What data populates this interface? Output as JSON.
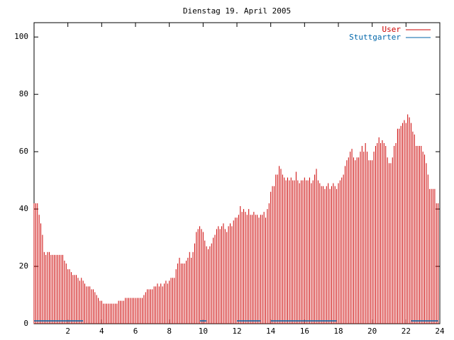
{
  "chart_data": {
    "type": "impulse",
    "title": "Dienstag 19. April 2005",
    "x": [
      0,
      0.1,
      0.2,
      0.3,
      0.4,
      0.5,
      0.6,
      0.7,
      0.8,
      0.9,
      1,
      1.1,
      1.2,
      1.3,
      1.4,
      1.5,
      1.6,
      1.7,
      1.8,
      1.9,
      2,
      2.1,
      2.2,
      2.3,
      2.4,
      2.5,
      2.6,
      2.7,
      2.8,
      2.9,
      3,
      3.1,
      3.2,
      3.3,
      3.4,
      3.5,
      3.6,
      3.7,
      3.8,
      3.9,
      4,
      4.1,
      4.2,
      4.3,
      4.4,
      4.5,
      4.6,
      4.7,
      4.8,
      4.9,
      5,
      5.1,
      5.2,
      5.3,
      5.4,
      5.5,
      5.6,
      5.7,
      5.8,
      5.9,
      6,
      6.1,
      6.2,
      6.3,
      6.4,
      6.5,
      6.6,
      6.7,
      6.8,
      6.9,
      7,
      7.1,
      7.2,
      7.3,
      7.4,
      7.5,
      7.6,
      7.7,
      7.8,
      7.9,
      8,
      8.1,
      8.2,
      8.3,
      8.4,
      8.5,
      8.6,
      8.7,
      8.8,
      8.9,
      9,
      9.1,
      9.2,
      9.3,
      9.4,
      9.5,
      9.6,
      9.7,
      9.8,
      9.9,
      10,
      10.1,
      10.2,
      10.3,
      10.4,
      10.5,
      10.6,
      10.7,
      10.8,
      10.9,
      11,
      11.1,
      11.2,
      11.3,
      11.4,
      11.5,
      11.6,
      11.7,
      11.8,
      11.9,
      12,
      12.1,
      12.2,
      12.3,
      12.4,
      12.5,
      12.6,
      12.7,
      12.8,
      12.9,
      13,
      13.1,
      13.2,
      13.3,
      13.4,
      13.5,
      13.6,
      13.7,
      13.8,
      13.9,
      14,
      14.1,
      14.2,
      14.3,
      14.4,
      14.5,
      14.6,
      14.7,
      14.8,
      14.9,
      15,
      15.1,
      15.2,
      15.3,
      15.4,
      15.5,
      15.6,
      15.7,
      15.8,
      15.9,
      16,
      16.1,
      16.2,
      16.3,
      16.4,
      16.5,
      16.6,
      16.7,
      16.8,
      16.9,
      17,
      17.1,
      17.2,
      17.3,
      17.4,
      17.5,
      17.6,
      17.7,
      17.8,
      17.9,
      18,
      18.1,
      18.2,
      18.3,
      18.4,
      18.5,
      18.6,
      18.7,
      18.8,
      18.9,
      19,
      19.1,
      19.2,
      19.3,
      19.4,
      19.5,
      19.6,
      19.7,
      19.8,
      19.9,
      20,
      20.1,
      20.2,
      20.3,
      20.4,
      20.5,
      20.6,
      20.7,
      20.8,
      20.9,
      21,
      21.1,
      21.2,
      21.3,
      21.4,
      21.5,
      21.6,
      21.7,
      21.8,
      21.9,
      22,
      22.1,
      22.2,
      22.3,
      22.4,
      22.5,
      22.6,
      22.7,
      22.8,
      22.9,
      23,
      23.1,
      23.2,
      23.3,
      23.4,
      23.5,
      23.6,
      23.7,
      23.8,
      23.9
    ],
    "series": [
      {
        "name": "User",
        "color": "#cc0000",
        "values": [
          42,
          42,
          42,
          38,
          35,
          31,
          25,
          24,
          25,
          25,
          24,
          24,
          24,
          24,
          24,
          24,
          24,
          24,
          22,
          21,
          19,
          19,
          18,
          17,
          17,
          17,
          16,
          15,
          16,
          15,
          14,
          13,
          13,
          13,
          12,
          12,
          11,
          10,
          9,
          8,
          8,
          7,
          7,
          7,
          7,
          7,
          7,
          7,
          7,
          7,
          8,
          8,
          8,
          8,
          9,
          9,
          9,
          9,
          9,
          9,
          9,
          9,
          9,
          9,
          9,
          10,
          11,
          12,
          12,
          12,
          12,
          13,
          13,
          14,
          13,
          14,
          13,
          14,
          15,
          14,
          15,
          16,
          16,
          16,
          19,
          21,
          23,
          21,
          21,
          21,
          22,
          23,
          25,
          23,
          25,
          28,
          32,
          33,
          34,
          33,
          32,
          29,
          27,
          26,
          27,
          28,
          30,
          31,
          33,
          34,
          33,
          34,
          35,
          33,
          32,
          34,
          35,
          34,
          36,
          37,
          37,
          38,
          41,
          39,
          40,
          39,
          38,
          40,
          38,
          38,
          39,
          38,
          38,
          37,
          38,
          38,
          39,
          37,
          40,
          42,
          46,
          48,
          48,
          52,
          52,
          55,
          54,
          52,
          51,
          50,
          51,
          50,
          51,
          50,
          50,
          53,
          50,
          49,
          50,
          50,
          51,
          50,
          50,
          51,
          49,
          50,
          52,
          54,
          50,
          49,
          48,
          48,
          47,
          48,
          49,
          47,
          48,
          49,
          48,
          47,
          49,
          50,
          51,
          52,
          55,
          57,
          58,
          60,
          61,
          58,
          57,
          58,
          58,
          60,
          62,
          60,
          63,
          60,
          57,
          57,
          57,
          60,
          62,
          63,
          65,
          63,
          64,
          63,
          62,
          58,
          56,
          56,
          58,
          62,
          63,
          68,
          68,
          69,
          70,
          71,
          70,
          73,
          72,
          70,
          67,
          66,
          62,
          62,
          62,
          62,
          60,
          59,
          56,
          52,
          47,
          47,
          47,
          47,
          42,
          42
        ]
      },
      {
        "name": "Stuttgarter",
        "color": "#0066aa",
        "values": [
          1,
          1,
          1,
          1,
          1,
          1,
          1,
          1,
          1,
          1,
          1,
          1,
          1,
          1,
          1,
          1,
          1,
          1,
          1,
          1,
          1,
          1,
          1,
          1,
          1,
          1,
          1,
          1,
          1,
          1,
          null,
          null,
          null,
          null,
          null,
          null,
          null,
          null,
          null,
          null,
          null,
          null,
          null,
          null,
          null,
          null,
          null,
          null,
          null,
          null,
          null,
          null,
          null,
          null,
          null,
          null,
          null,
          null,
          null,
          null,
          null,
          null,
          null,
          null,
          null,
          null,
          null,
          null,
          null,
          null,
          null,
          null,
          null,
          null,
          null,
          null,
          null,
          null,
          null,
          null,
          null,
          null,
          null,
          null,
          null,
          null,
          null,
          null,
          null,
          null,
          null,
          null,
          null,
          null,
          null,
          null,
          null,
          null,
          1,
          1,
          1,
          1,
          1,
          null,
          null,
          null,
          null,
          null,
          null,
          null,
          null,
          null,
          null,
          null,
          null,
          null,
          null,
          null,
          null,
          null,
          1,
          1,
          1,
          1,
          1,
          1,
          1,
          1,
          1,
          1,
          1,
          1,
          1,
          1,
          1,
          null,
          null,
          null,
          null,
          null,
          1,
          1,
          1,
          1,
          1,
          1,
          1,
          1,
          1,
          1,
          1,
          1,
          1,
          1,
          1,
          1,
          1,
          1,
          1,
          1,
          1,
          1,
          1,
          1,
          1,
          1,
          1,
          1,
          1,
          1,
          1,
          1,
          1,
          1,
          1,
          1,
          1,
          1,
          1,
          1,
          null,
          null,
          null,
          null,
          null,
          null,
          null,
          null,
          null,
          null,
          null,
          null,
          null,
          null,
          null,
          null,
          null,
          null,
          null,
          null,
          null,
          null,
          null,
          null,
          null,
          null,
          null,
          null,
          null,
          null,
          null,
          null,
          null,
          null,
          null,
          null,
          null,
          null,
          null,
          null,
          null,
          null,
          null,
          1,
          1,
          1,
          1,
          1,
          1,
          1,
          1,
          1,
          1,
          1,
          1,
          1,
          1,
          1,
          1,
          1
        ]
      }
    ],
    "xlim": [
      0,
      24
    ],
    "xticks": [
      2,
      4,
      6,
      8,
      10,
      12,
      14,
      16,
      18,
      20,
      22,
      24
    ],
    "ylim": [
      0,
      105
    ],
    "yticks": [
      0,
      20,
      40,
      60,
      80,
      100
    ]
  }
}
